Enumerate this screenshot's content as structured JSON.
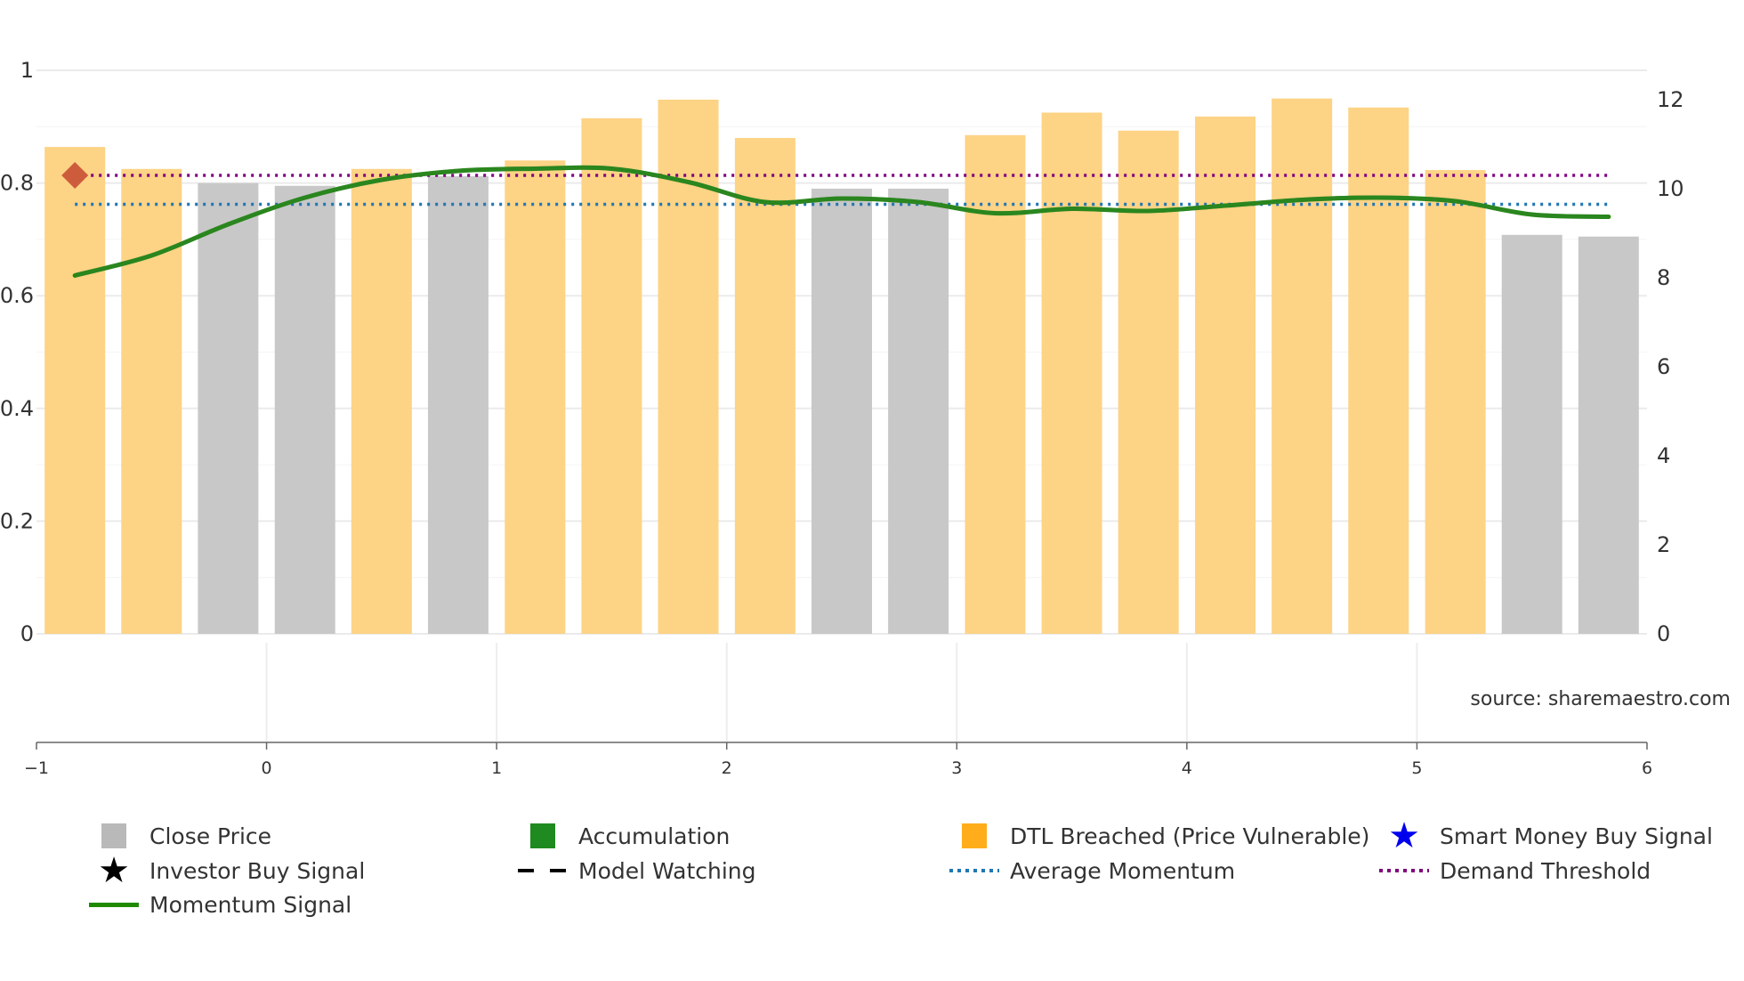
{
  "chart_data": {
    "type": "bar",
    "title": "",
    "source": "source: sharemaestro.com",
    "left_axis": {
      "ylim": [
        0,
        1
      ],
      "ticks": [
        "0",
        "0.2",
        "0.4",
        "0.6",
        "0.8",
        "1"
      ],
      "tick_values": [
        0,
        0.2,
        0.4,
        0.6,
        0.8,
        1.0
      ]
    },
    "right_axis": {
      "ylim": [
        0,
        12.65
      ],
      "ticks": [
        "0",
        "2",
        "4",
        "6",
        "8",
        "10",
        "12"
      ],
      "tick_values": [
        0,
        2,
        4,
        6,
        8,
        10,
        12
      ]
    },
    "x_axis": {
      "xlim": [
        -1,
        6
      ],
      "ticks": [
        "−1",
        "0",
        "1",
        "2",
        "3",
        "4",
        "5",
        "6"
      ],
      "tick_values": [
        -1,
        0,
        1,
        2,
        3,
        4,
        5,
        6
      ]
    },
    "bars": {
      "name": "Close Price",
      "x": [
        -0.833,
        -0.5,
        -0.167,
        0.167,
        0.5,
        0.833,
        1.167,
        1.5,
        1.833,
        2.167,
        2.5,
        2.833,
        3.167,
        3.5,
        3.833,
        4.167,
        4.5,
        4.833,
        5.167,
        5.5,
        5.833
      ],
      "values": [
        0.864,
        0.825,
        0.8,
        0.795,
        0.825,
        0.812,
        0.84,
        0.915,
        0.948,
        0.88,
        0.79,
        0.79,
        0.885,
        0.925,
        0.893,
        0.918,
        0.95,
        0.934,
        0.823,
        0.708,
        0.705
      ],
      "category": [
        "dtl",
        "dtl",
        "close",
        "close",
        "dtl",
        "close",
        "dtl",
        "dtl",
        "dtl",
        "dtl",
        "close",
        "close",
        "dtl",
        "dtl",
        "dtl",
        "dtl",
        "dtl",
        "dtl",
        "dtl",
        "close",
        "close"
      ]
    },
    "momentum": {
      "name": "Momentum Signal",
      "x": [
        -0.833,
        -0.5,
        -0.167,
        0.167,
        0.5,
        0.833,
        1.167,
        1.5,
        1.833,
        2.167,
        2.5,
        2.833,
        3.167,
        3.5,
        3.833,
        4.167,
        4.5,
        4.833,
        5.167,
        5.5,
        5.833
      ],
      "values": [
        8.05,
        8.5,
        9.2,
        9.8,
        10.2,
        10.4,
        10.45,
        10.45,
        10.15,
        9.7,
        9.78,
        9.7,
        9.45,
        9.55,
        9.5,
        9.62,
        9.75,
        9.8,
        9.72,
        9.42,
        9.37
      ]
    },
    "average_momentum": {
      "name": "Average Momentum",
      "value": 9.65
    },
    "demand_threshold": {
      "name": "Demand Threshold",
      "value": 10.3
    },
    "marker": {
      "name": "Momentum Marker",
      "x": -0.833,
      "value": 10.3
    },
    "colors": {
      "close": "#c8c8c8",
      "dtl": "#fdd385",
      "momentum": "#1f8a00",
      "momentum_faded": "#3f7f55",
      "average": "#1f77b4",
      "threshold": "#800080",
      "marker": "#cd5c3c",
      "grid": "#ebebeb"
    }
  },
  "legend": {
    "items": [
      {
        "label": "Close Price",
        "symbol": "square",
        "color": "#b9b9b9"
      },
      {
        "label": "Accumulation",
        "symbol": "square",
        "color": "#1f8a1f"
      },
      {
        "label": "DTL Breached (Price Vulnerable)",
        "symbol": "square",
        "color": "#ffad1a"
      },
      {
        "label": "Smart Money Buy Signal",
        "symbol": "star",
        "color": "#0000ee"
      },
      {
        "label": "Investor Buy Signal",
        "symbol": "star",
        "color": "#000000"
      },
      {
        "label": "Model Watching",
        "symbol": "dash",
        "color": "#000000"
      },
      {
        "label": "Average Momentum",
        "symbol": "dot",
        "color": "#1f77b4"
      },
      {
        "label": "Demand Threshold",
        "symbol": "dot",
        "color": "#800080"
      },
      {
        "label": "Momentum Signal",
        "symbol": "line",
        "color": "#1f8a00"
      }
    ]
  }
}
